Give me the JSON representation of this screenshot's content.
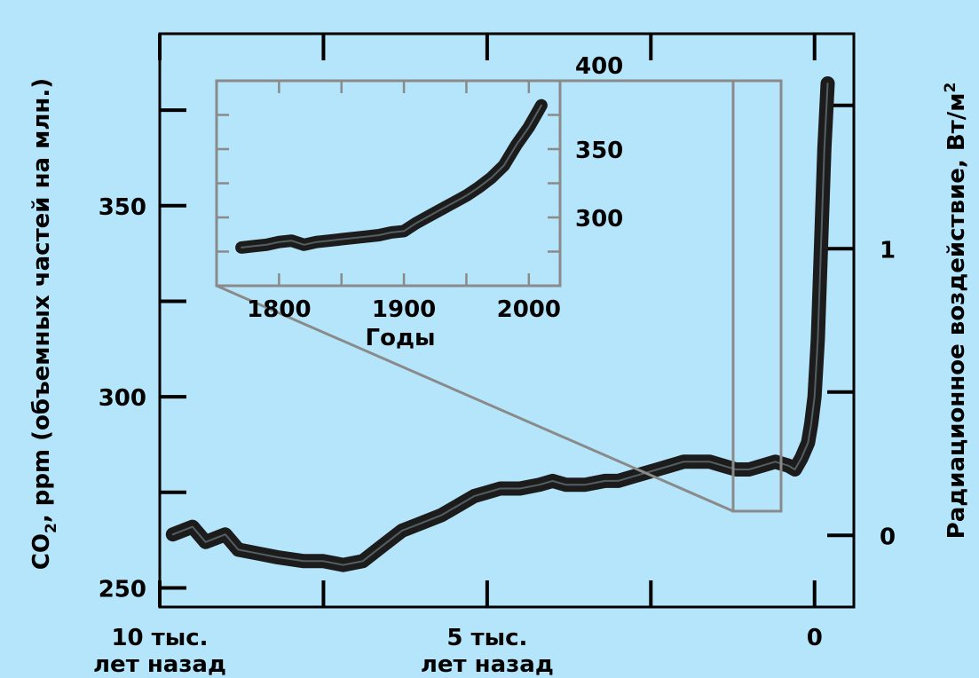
{
  "colors": {
    "background": "#b4e5fa",
    "axis": "#000000",
    "series": "#1c1c1c",
    "inset_frame": "#8a8a8a"
  },
  "chart_data": [
    {
      "id": "main",
      "type": "line",
      "ylabel_main": "CO",
      "ylabel_sub": "2",
      "ylabel_rest": ", ppm (объемных частей на млн.)",
      "y2label_main": "Радиационное воздействие, Вт/м",
      "y2label_sup": "2",
      "xlim": [
        -10000,
        600
      ],
      "ylim": [
        245,
        395
      ],
      "y2lim": [
        -0.25,
        1.75
      ],
      "x_ticks": [
        {
          "value": -10000,
          "label_line1": "10 тыс.",
          "label_line2": "лет назад"
        },
        {
          "value": -5000,
          "label_line1": "5 тыс.",
          "label_line2": "лет назад"
        },
        {
          "value": 0,
          "label_line1": "0",
          "label_line2": ""
        }
      ],
      "x_minor_ticks": [
        -7500,
        -2500
      ],
      "y_ticks": [
        {
          "value": 250,
          "label": "250"
        },
        {
          "value": 300,
          "label": "300"
        },
        {
          "value": 350,
          "label": "350"
        }
      ],
      "y_minor_ticks": [
        275,
        325,
        375
      ],
      "y2_ticks": [
        {
          "value": 0,
          "label": "0"
        },
        {
          "value": 1,
          "label": "1"
        }
      ],
      "y2_minor_ticks": [
        0.5,
        1.5
      ],
      "grid": false,
      "series": [
        {
          "x": [
            -9800,
            -9500,
            -9300,
            -9000,
            -8800,
            -8500,
            -8200,
            -7800,
            -7500,
            -7200,
            -6900,
            -6600,
            -6300,
            -6000,
            -5700,
            -5400,
            -5200,
            -5000,
            -4800,
            -4500,
            -4200,
            -4000,
            -3800,
            -3500,
            -3200,
            -3000,
            -2800,
            -2600,
            -2400,
            -2200,
            -2000,
            -1800,
            -1600,
            -1400,
            -1200,
            -1000,
            -800,
            -600,
            -400,
            -300,
            -200,
            -100,
            -50,
            0,
            50,
            100,
            150,
            200
          ],
          "y": [
            264,
            266,
            262,
            264,
            260,
            259,
            258,
            257,
            257,
            256,
            257,
            261,
            265,
            267,
            269,
            272,
            274,
            275,
            276,
            276,
            277,
            278,
            277,
            277,
            278,
            278,
            279,
            280,
            281,
            282,
            283,
            283,
            283,
            282,
            281,
            281,
            282,
            283,
            282,
            281,
            284,
            288,
            293,
            300,
            315,
            340,
            365,
            382
          ]
        }
      ]
    },
    {
      "id": "inset",
      "type": "line",
      "xlabel": "Годы",
      "xlim": [
        1750,
        2025
      ],
      "ylim": [
        250,
        400
      ],
      "x_ticks": [
        {
          "value": 1800,
          "label": "1800"
        },
        {
          "value": 1900,
          "label": "1900"
        },
        {
          "value": 2000,
          "label": "2000"
        }
      ],
      "x_minor_ticks": [
        1850,
        1950
      ],
      "y_ticks": [
        {
          "value": 300,
          "label": "300"
        },
        {
          "value": 350,
          "label": "350"
        },
        {
          "value": 400,
          "label": "400"
        }
      ],
      "y_minor_ticks": [
        275,
        325,
        375
      ],
      "series": [
        {
          "x": [
            1770,
            1780,
            1790,
            1800,
            1810,
            1820,
            1830,
            1840,
            1850,
            1860,
            1870,
            1880,
            1890,
            1900,
            1910,
            1920,
            1930,
            1940,
            1950,
            1960,
            1970,
            1980,
            1990,
            2000,
            2005,
            2010
          ],
          "y": [
            278,
            279,
            280,
            282,
            283,
            280,
            282,
            283,
            284,
            285,
            286,
            287,
            289,
            290,
            296,
            301,
            306,
            311,
            316,
            322,
            329,
            338,
            353,
            366,
            374,
            382
          ]
        }
      ]
    }
  ]
}
